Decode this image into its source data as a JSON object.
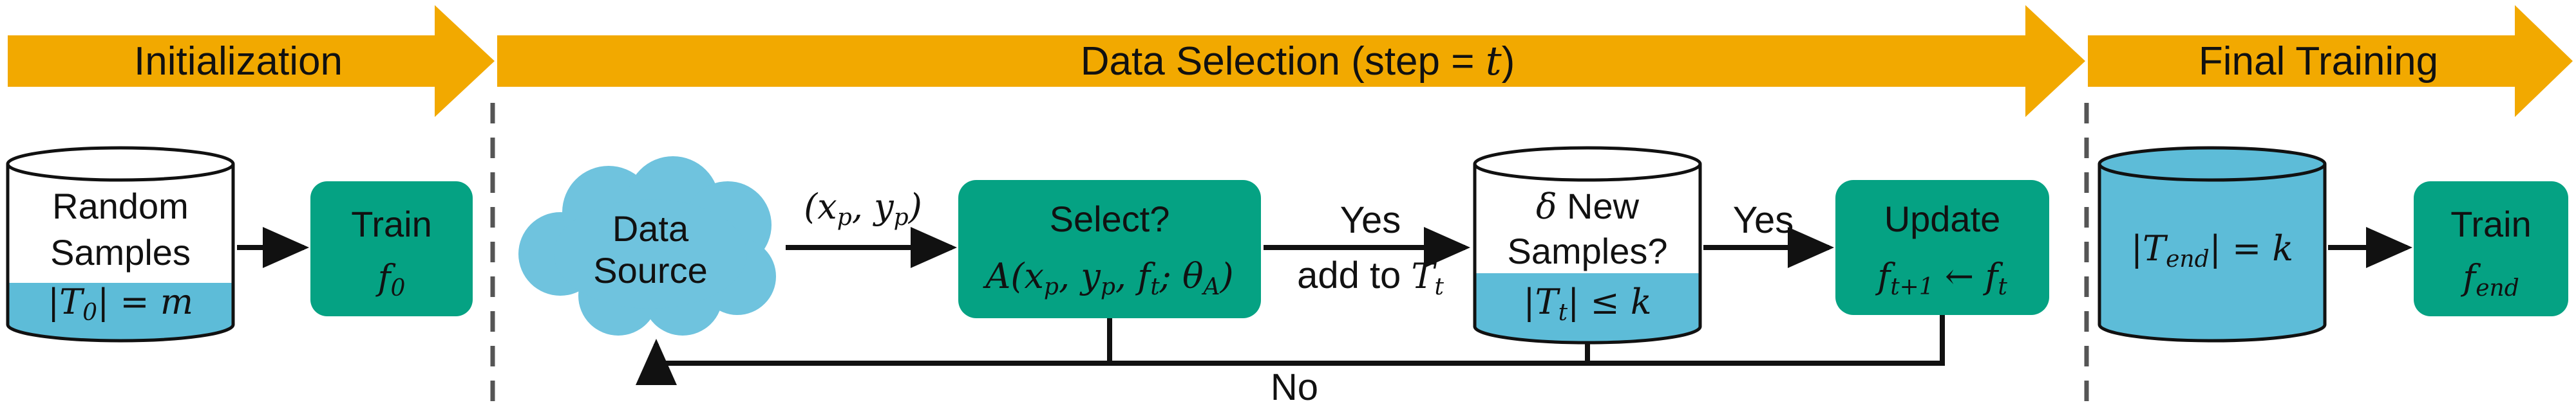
{
  "colors": {
    "phase_arrow": "#F2A900",
    "teal_box": "#05A283",
    "cylinder_fill": "#5DBCD8",
    "cloud_fill": "#6FC3DE",
    "stroke": "#111111",
    "divider": "#555555"
  },
  "phases": {
    "initialization": "Initialization",
    "data_selection": "Data Selection (step = ",
    "data_selection_var": "t",
    "data_selection_close": ")",
    "final_training": "Final Training"
  },
  "init_db": {
    "line1": "Random",
    "line2": "Samples",
    "count_T": "|T",
    "count_sub": "0",
    "count_rest": "| = m"
  },
  "train0": {
    "label": "Train",
    "f": "f",
    "sub": "0"
  },
  "data_source": {
    "line1": "Data",
    "line2": "Source"
  },
  "pair_label": {
    "open": "(x",
    "p1": "p",
    "mid": ", y",
    "p2": "p",
    "close": ")"
  },
  "select_box": {
    "label": "Select?",
    "A": "A(x",
    "p1": "p",
    "mid1": ", y",
    "p2": "p",
    "mid2": ", f",
    "t": "t",
    "mid3": "; θ",
    "Asub": "A",
    "close": ")"
  },
  "yes_add": {
    "yes": "Yes",
    "add": "add to ",
    "T": "T",
    "t": "t"
  },
  "new_db": {
    "delta": "δ",
    "line1": " New",
    "line2": "Samples?",
    "T": "|T",
    "t": "t",
    "rest": "| ≤ k"
  },
  "yes2": "Yes",
  "update_box": {
    "label": "Update",
    "f1": "f",
    "s1": "t+1",
    "arrow": " ← f",
    "s2": "t"
  },
  "no_label": "No",
  "end_db": {
    "T": "|T",
    "sub": "end",
    "rest": "| = k"
  },
  "train_end": {
    "label": "Train",
    "f": "f",
    "sub": "end"
  }
}
